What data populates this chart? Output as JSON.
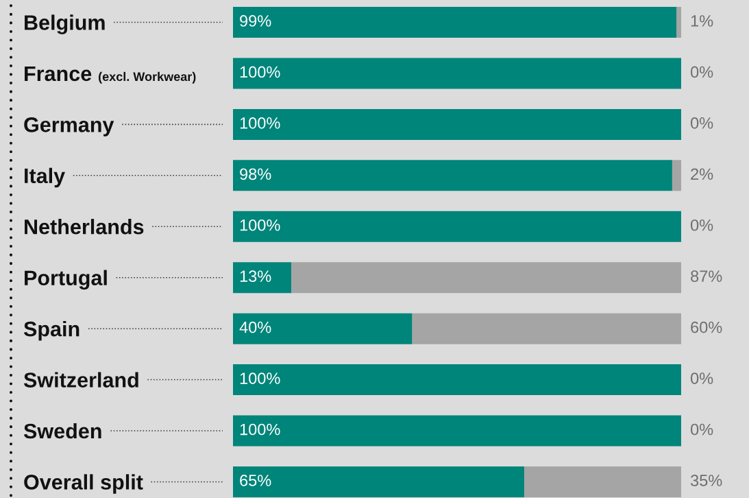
{
  "chart_data": {
    "type": "bar",
    "orientation": "horizontal",
    "stacked": true,
    "categories": [
      "Belgium",
      "France (excl. Workwear)",
      "Germany",
      "Italy",
      "Netherlands",
      "Portugal",
      "Spain",
      "Switzerland",
      "Sweden",
      "Overall split"
    ],
    "series": [
      {
        "color": "#00857a",
        "values": [
          99,
          100,
          100,
          98,
          100,
          13,
          40,
          100,
          100,
          65
        ],
        "value_labels": [
          "99%",
          "100%",
          "100%",
          "98%",
          "100%",
          "13%",
          "40%",
          "100%",
          "100%",
          "65%"
        ]
      },
      {
        "color": "#a5a5a5",
        "values": [
          1,
          0,
          0,
          2,
          0,
          87,
          60,
          0,
          0,
          35
        ],
        "value_labels": [
          "1%",
          "0%",
          "0%",
          "2%",
          "0%",
          "87%",
          "60%",
          "0%",
          "0%",
          "35%"
        ]
      }
    ],
    "xlim": [
      0,
      100
    ],
    "tick_labels": "y"
  }
}
